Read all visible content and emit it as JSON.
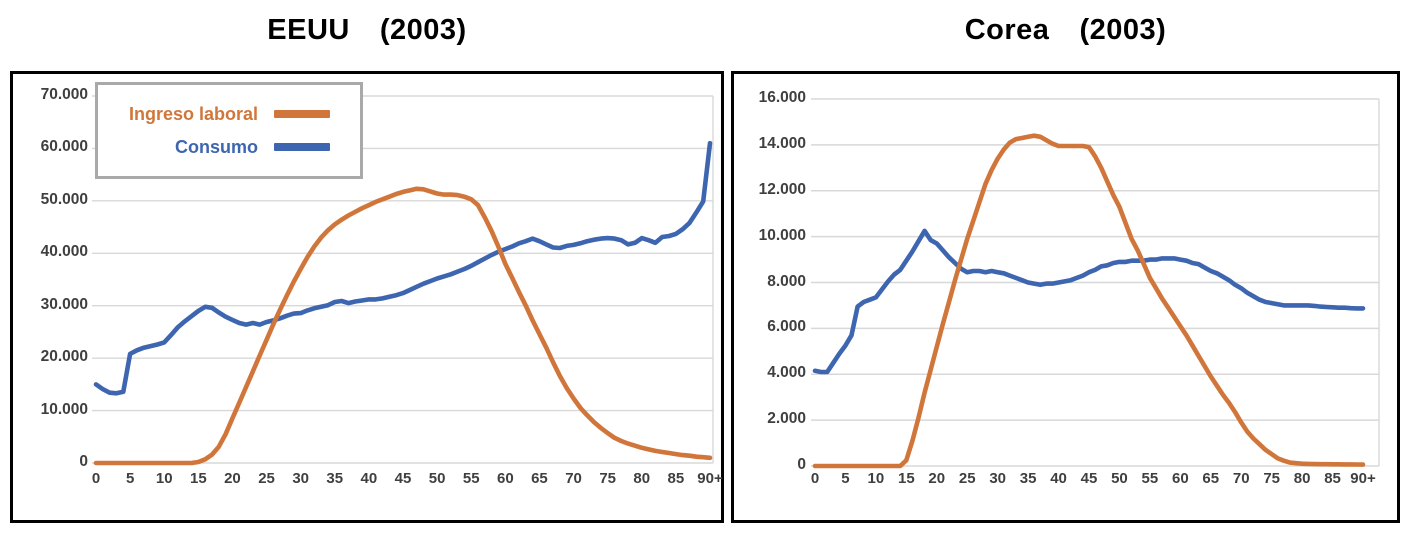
{
  "chart_data": [
    {
      "type": "line",
      "title": {
        "name": "EEUU",
        "year": "(2003)"
      },
      "y_axis": {
        "ylim": [
          0,
          70000
        ],
        "step": 10000,
        "tick_labels": [
          "0",
          "10.000",
          "20.000",
          "30.000",
          "40.000",
          "50.000",
          "60.000",
          "70.000"
        ]
      },
      "x_axis": {
        "x_range": [
          0,
          90
        ],
        "tick_labels": [
          "0",
          "5",
          "10",
          "15",
          "20",
          "25",
          "30",
          "35",
          "40",
          "45",
          "50",
          "55",
          "60",
          "65",
          "70",
          "75",
          "80",
          "85",
          "90+"
        ]
      },
      "grid": true,
      "legend_position": "top-left",
      "series": [
        {
          "name": "Ingreso laboral",
          "color": "#D1763B",
          "values": [
            0,
            0,
            0,
            0,
            0,
            0,
            0,
            0,
            0,
            0,
            0,
            0,
            0,
            0,
            0,
            200,
            700,
            1600,
            3100,
            5500,
            8500,
            11500,
            14500,
            17500,
            20500,
            23500,
            26500,
            29300,
            32000,
            34600,
            37000,
            39300,
            41300,
            43000,
            44400,
            45500,
            46400,
            47200,
            47900,
            48600,
            49200,
            49800,
            50300,
            50800,
            51300,
            51700,
            52000,
            52300,
            52200,
            51800,
            51400,
            51200,
            51200,
            51100,
            50800,
            50300,
            49200,
            46800,
            44200,
            41200,
            38000,
            35300,
            32600,
            30000,
            27200,
            24600,
            22000,
            19200,
            16600,
            14300,
            12300,
            10500,
            9100,
            7800,
            6700,
            5700,
            4800,
            4200,
            3700,
            3300,
            2900,
            2600,
            2300,
            2100,
            1900,
            1700,
            1500,
            1400,
            1200,
            1100,
            1000
          ]
        },
        {
          "name": "Consumo",
          "color": "#3E66B0",
          "values": [
            15000,
            14100,
            13400,
            13300,
            13600,
            20800,
            21500,
            22000,
            22300,
            22600,
            23000,
            24400,
            25900,
            27000,
            28000,
            29000,
            29800,
            29600,
            28700,
            27900,
            27300,
            26700,
            26400,
            26700,
            26400,
            26900,
            27200,
            27600,
            28100,
            28500,
            28600,
            29100,
            29500,
            29800,
            30100,
            30700,
            30900,
            30500,
            30800,
            31000,
            31200,
            31200,
            31400,
            31700,
            32000,
            32400,
            33000,
            33600,
            34200,
            34700,
            35200,
            35600,
            36000,
            36500,
            37000,
            37600,
            38300,
            39000,
            39700,
            40300,
            40800,
            41300,
            41900,
            42300,
            42800,
            42300,
            41700,
            41100,
            41000,
            41400,
            41600,
            41900,
            42300,
            42600,
            42800,
            42900,
            42800,
            42500,
            41700,
            42000,
            42900,
            42500,
            42000,
            43100,
            43300,
            43700,
            44600,
            45800,
            47800,
            49900,
            61000
          ]
        }
      ]
    },
    {
      "type": "line",
      "title": {
        "name": "Corea",
        "year": "(2003)"
      },
      "y_axis": {
        "ylim": [
          0,
          16000
        ],
        "step": 2000,
        "tick_labels": [
          "0",
          "2.000",
          "4.000",
          "6.000",
          "8.000",
          "10.000",
          "12.000",
          "14.000",
          "16.000"
        ]
      },
      "x_axis": {
        "x_range": [
          0,
          90
        ],
        "tick_labels": [
          "0",
          "5",
          "10",
          "15",
          "20",
          "25",
          "30",
          "35",
          "40",
          "45",
          "50",
          "55",
          "60",
          "65",
          "70",
          "75",
          "80",
          "85",
          "90+"
        ]
      },
      "grid": true,
      "legend_position": "none",
      "series": [
        {
          "name": "Ingreso laboral",
          "color": "#D1763B",
          "values": [
            0,
            0,
            0,
            0,
            0,
            0,
            0,
            0,
            0,
            0,
            0,
            0,
            0,
            0,
            0,
            250,
            1100,
            2100,
            3200,
            4200,
            5200,
            6200,
            7150,
            8100,
            9000,
            9900,
            10700,
            11500,
            12300,
            12900,
            13400,
            13800,
            14100,
            14250,
            14300,
            14350,
            14400,
            14350,
            14200,
            14050,
            13950,
            13950,
            13950,
            13950,
            13950,
            13900,
            13500,
            13000,
            12400,
            11800,
            11300,
            10600,
            9900,
            9400,
            8800,
            8200,
            7750,
            7300,
            6900,
            6500,
            6100,
            5700,
            5250,
            4800,
            4350,
            3900,
            3500,
            3100,
            2750,
            2350,
            1900,
            1500,
            1200,
            950,
            700,
            520,
            330,
            230,
            150,
            120,
            100,
            90,
            85,
            80,
            80,
            75,
            75,
            70,
            70,
            65,
            60
          ]
        },
        {
          "name": "Consumo",
          "color": "#3E66B0",
          "values": [
            4150,
            4100,
            4100,
            4500,
            4900,
            5250,
            5700,
            6950,
            7150,
            7250,
            7350,
            7700,
            8050,
            8350,
            8550,
            8950,
            9350,
            9800,
            10250,
            9850,
            9700,
            9400,
            9100,
            8850,
            8600,
            8450,
            8500,
            8500,
            8450,
            8500,
            8450,
            8400,
            8300,
            8200,
            8100,
            8000,
            7950,
            7900,
            7950,
            7950,
            8000,
            8050,
            8100,
            8200,
            8300,
            8450,
            8550,
            8700,
            8750,
            8850,
            8900,
            8900,
            8950,
            8950,
            8950,
            9000,
            9000,
            9050,
            9050,
            9050,
            9000,
            8950,
            8850,
            8800,
            8650,
            8500,
            8400,
            8250,
            8100,
            7900,
            7750,
            7550,
            7400,
            7250,
            7150,
            7100,
            7050,
            7000,
            7000,
            7000,
            7000,
            7000,
            6980,
            6950,
            6930,
            6920,
            6900,
            6900,
            6880,
            6870,
            6870
          ]
        }
      ]
    }
  ],
  "legend": {
    "items": [
      {
        "label": "Ingreso laboral",
        "color": "#D1763B"
      },
      {
        "label": "Consumo",
        "color": "#3E66B0"
      }
    ]
  },
  "colors": {
    "ingreso_laboral": "#D1763B",
    "consumo": "#3E66B0",
    "axis_text": "#3F3F3F",
    "gridline": "#D8D8D8",
    "chart_border": "#000000",
    "legend_border": "#A9A9A9"
  }
}
